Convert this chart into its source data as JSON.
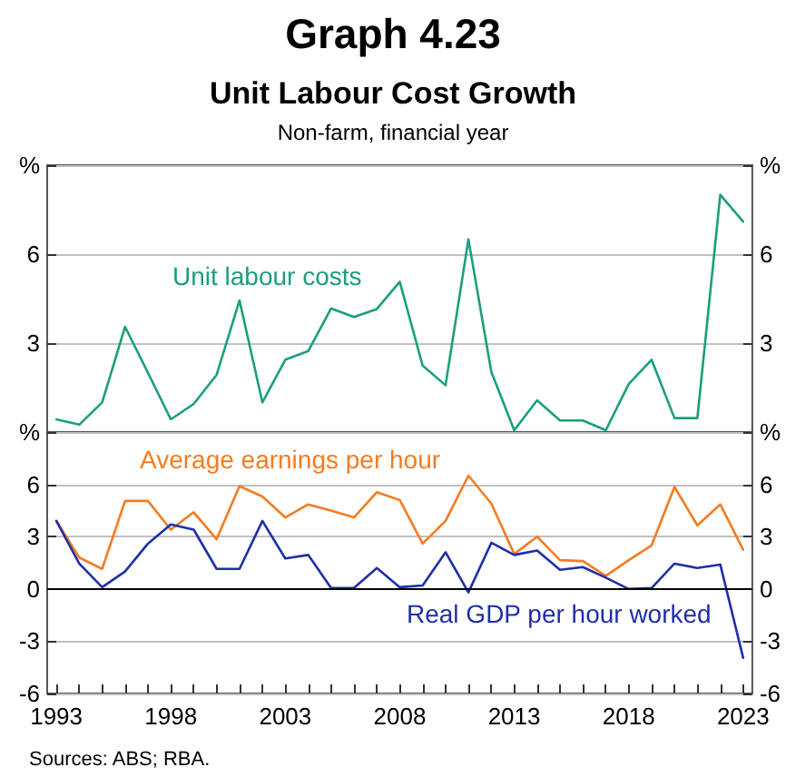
{
  "chart_data": [
    {
      "type": "line",
      "title": "Graph 4.23",
      "subtitle": "Unit Labour Cost Growth",
      "annotations": [
        "Non-farm, financial year"
      ],
      "x": [
        1993,
        1994,
        1995,
        1996,
        1997,
        1998,
        1999,
        2000,
        2001,
        2002,
        2003,
        2004,
        2005,
        2006,
        2007,
        2008,
        2009,
        2010,
        2011,
        2012,
        2013,
        2014,
        2015,
        2016,
        2017,
        2018,
        2019,
        2020,
        2021,
        2022,
        2023
      ],
      "series": [
        {
          "name": "Unit labour costs",
          "color": "#1a9f7e",
          "values": [
            0.43,
            0.25,
            1.0,
            3.55,
            2.0,
            0.43,
            0.95,
            1.93,
            4.44,
            1.0,
            2.44,
            2.73,
            4.17,
            3.88,
            4.15,
            5.07,
            2.24,
            1.58,
            6.5,
            2.03,
            0.06,
            1.07,
            0.39,
            0.39,
            0.06,
            1.62,
            2.44,
            0.47,
            0.47,
            8.0,
            7.1
          ]
        }
      ],
      "xlim": [
        1992.6,
        2023.4
      ],
      "ylim": [
        0,
        9
      ],
      "yticks": [
        3,
        6,
        {
          "value": 9,
          "label": "%"
        }
      ],
      "y2lim": [
        0,
        9
      ],
      "y2ticks": [
        3,
        6,
        {
          "value": 9,
          "label": "%"
        }
      ],
      "tick_labels": "y",
      "grid": "y",
      "legend": false,
      "marker": "none",
      "line_style": "solid"
    },
    {
      "type": "line",
      "annotations": [
        "Sources: ABS; RBA."
      ],
      "x": [
        1993,
        1994,
        1995,
        1996,
        1997,
        1998,
        1999,
        2000,
        2001,
        2002,
        2003,
        2004,
        2005,
        2006,
        2007,
        2008,
        2009,
        2010,
        2011,
        2012,
        2013,
        2014,
        2015,
        2016,
        2017,
        2018,
        2019,
        2020,
        2021,
        2022,
        2023
      ],
      "series": [
        {
          "name": "Average earnings per hour",
          "color": "#f47c20",
          "values": [
            3.9,
            1.8,
            1.15,
            5.05,
            5.05,
            3.4,
            4.4,
            2.85,
            5.9,
            5.3,
            4.1,
            4.85,
            4.5,
            4.1,
            5.55,
            5.1,
            2.6,
            3.9,
            6.5,
            4.9,
            2.0,
            3.0,
            1.65,
            1.6,
            0.75,
            1.65,
            2.5,
            5.85,
            3.65,
            4.85,
            2.25
          ]
        },
        {
          "name": "Real GDP per hour worked",
          "color": "#1f2fa8",
          "values": [
            3.9,
            1.45,
            0.1,
            1.0,
            2.6,
            3.7,
            3.4,
            1.15,
            1.15,
            3.9,
            1.75,
            1.95,
            0.05,
            0.05,
            1.2,
            0.1,
            0.2,
            2.1,
            -0.2,
            2.65,
            1.95,
            2.2,
            1.1,
            1.25,
            0.65,
            0.0,
            0.05,
            1.45,
            1.2,
            1.4,
            -3.95
          ]
        }
      ],
      "xlim": [
        1992.6,
        2023.4
      ],
      "xticks": [
        1993,
        {
          "value": 1994,
          "label": null
        },
        {
          "value": 1995,
          "label": null
        },
        {
          "value": 1996,
          "label": null
        },
        {
          "value": 1997,
          "label": null
        },
        1998,
        {
          "value": 1999,
          "label": null
        },
        {
          "value": 2000,
          "label": null
        },
        {
          "value": 2001,
          "label": null
        },
        {
          "value": 2002,
          "label": null
        },
        2003,
        {
          "value": 2004,
          "label": null
        },
        {
          "value": 2005,
          "label": null
        },
        {
          "value": 2006,
          "label": null
        },
        {
          "value": 2007,
          "label": null
        },
        2008,
        {
          "value": 2009,
          "label": null
        },
        {
          "value": 2010,
          "label": null
        },
        {
          "value": 2011,
          "label": null
        },
        {
          "value": 2012,
          "label": null
        },
        2013,
        {
          "value": 2014,
          "label": null
        },
        {
          "value": 2015,
          "label": null
        },
        {
          "value": 2016,
          "label": null
        },
        {
          "value": 2017,
          "label": null
        },
        2018,
        {
          "value": 2019,
          "label": null
        },
        {
          "value": 2020,
          "label": null
        },
        {
          "value": 2021,
          "label": null
        },
        {
          "value": 2022,
          "label": null
        },
        2023
      ],
      "ylim": [
        -6,
        9
      ],
      "yticks": [
        -6,
        -3,
        0,
        3,
        6,
        {
          "value": 9,
          "label": "%"
        }
      ],
      "y2lim": [
        -6,
        9
      ],
      "y2ticks": [
        -6,
        -3,
        0,
        3,
        6,
        {
          "value": 9,
          "label": "%"
        }
      ],
      "ref_lines": [
        {
          "axis": "y",
          "value": 0,
          "color": "#000000"
        }
      ],
      "grid": "y",
      "legend": false,
      "marker": "none",
      "line_style": "solid"
    }
  ]
}
